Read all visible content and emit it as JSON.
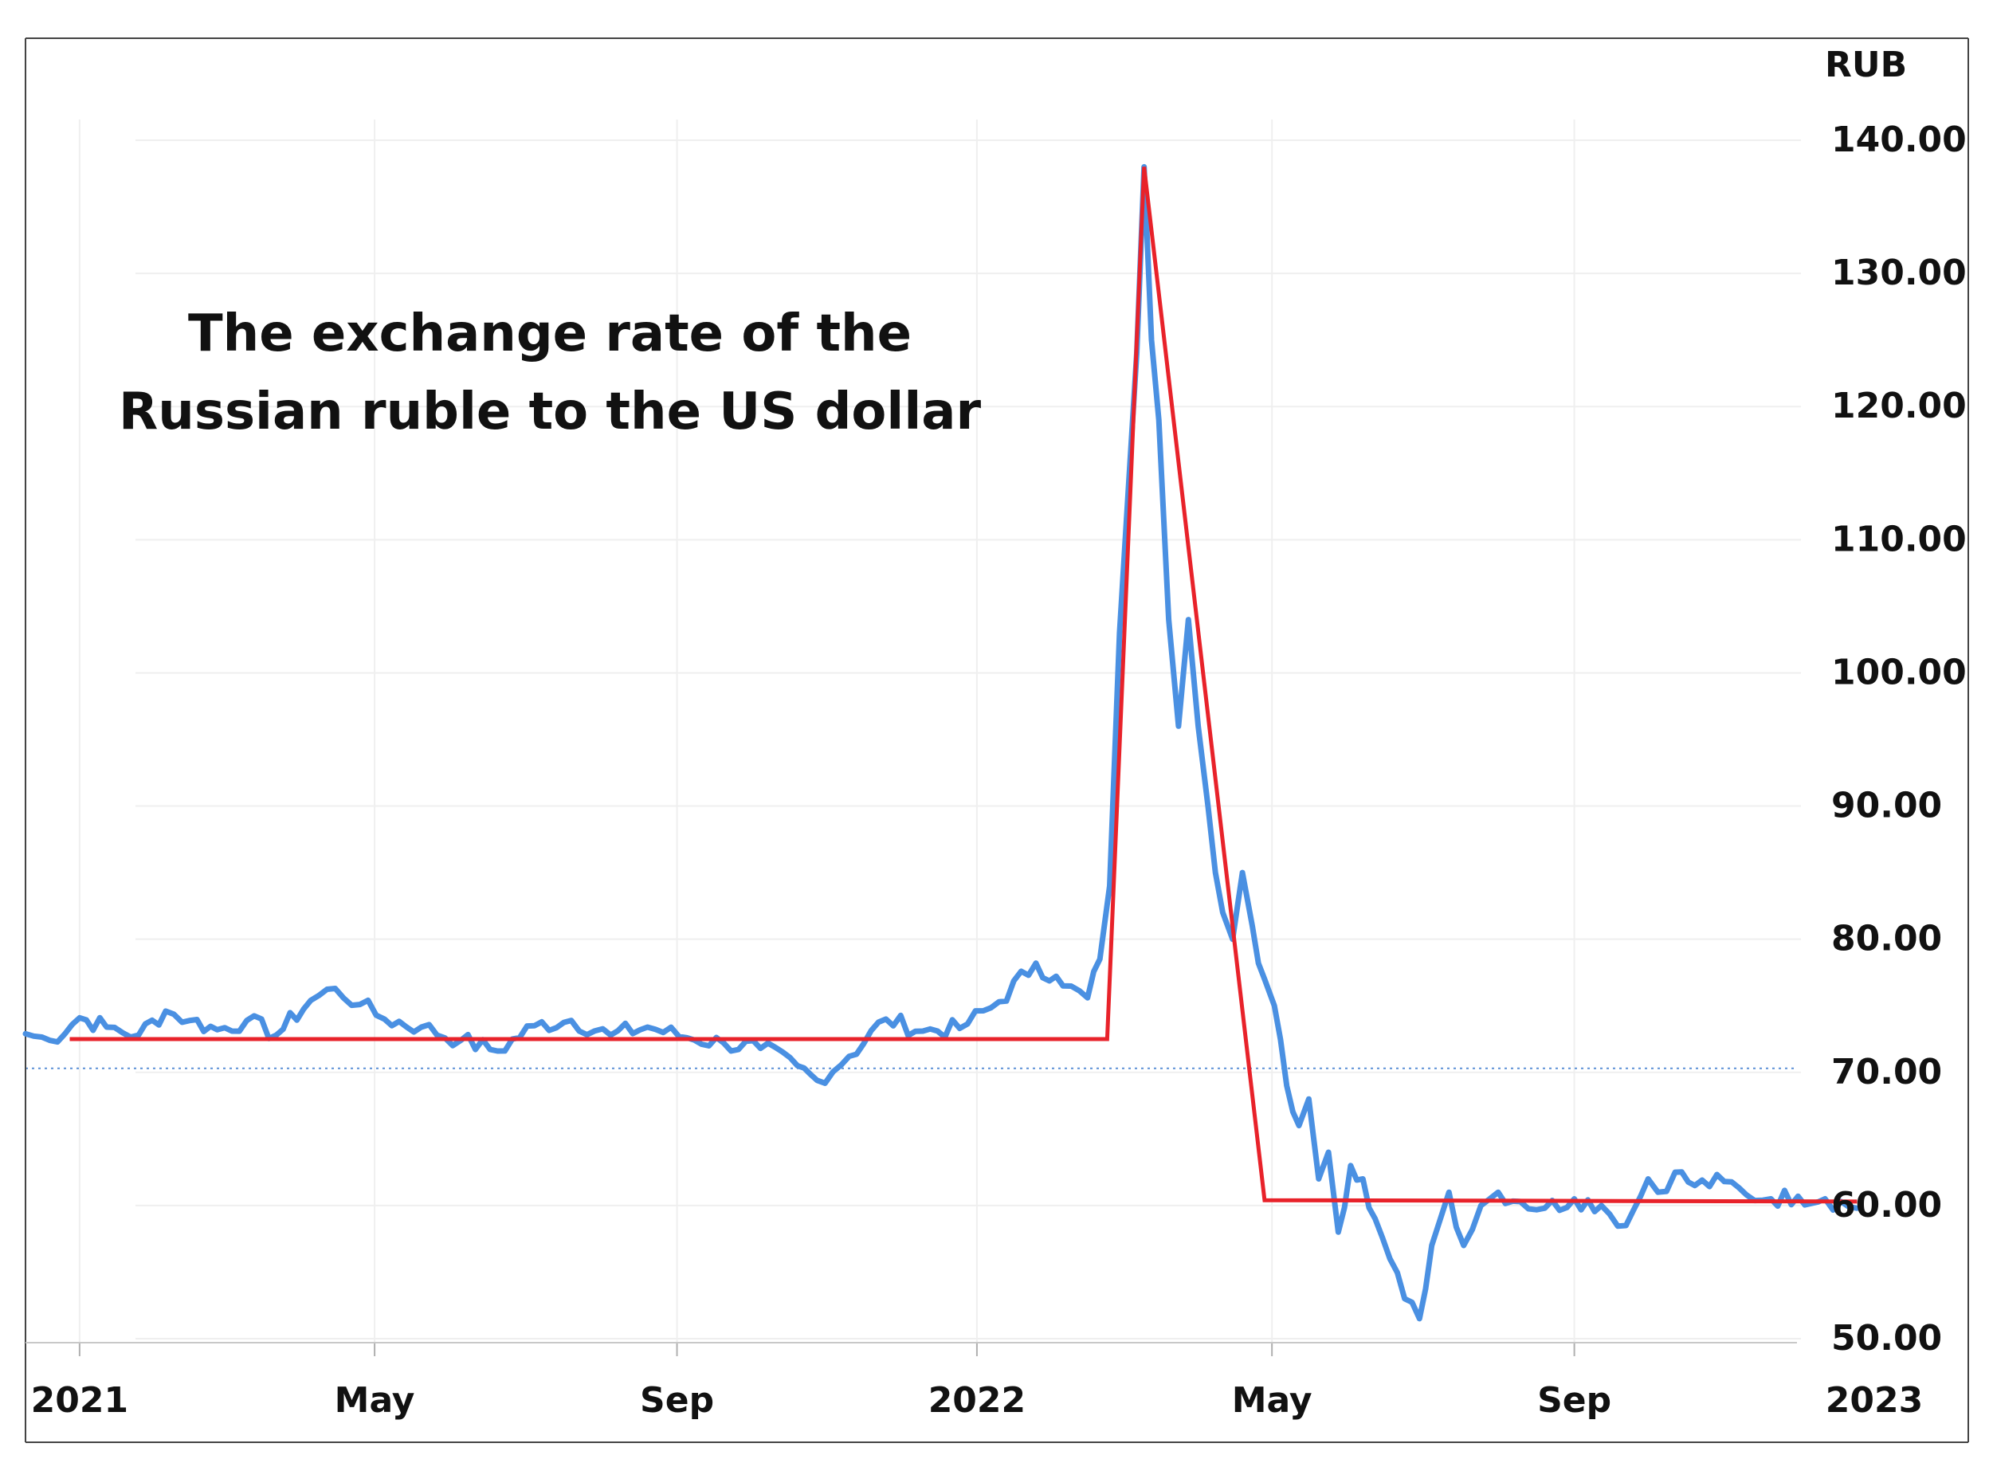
{
  "chart_data": {
    "type": "line",
    "title_lines": [
      "The exchange rate of the",
      "Russian ruble to the US dollar"
    ],
    "ylabel": "RUB",
    "ylim": [
      50,
      140
    ],
    "y_ticks": [
      50,
      60,
      70,
      80,
      90,
      100,
      110,
      120,
      130,
      140
    ],
    "y_tick_labels": [
      "50.00",
      "60.00",
      "70.00",
      "80.00",
      "90.00",
      "100.00",
      "110.00",
      "120.00",
      "130.00",
      "140.00"
    ],
    "xlim": [
      "2020-12-10",
      "2023-01-01"
    ],
    "x_ticks": [
      "2021-01-01",
      "2021-05-01",
      "2021-09-01",
      "2022-01-01",
      "2022-05-01",
      "2022-09-01",
      "2023-01-01"
    ],
    "x_tick_labels": [
      "2021",
      "May",
      "Sep",
      "2022",
      "May",
      "Sep",
      "2023"
    ],
    "grid": true,
    "reference_line": {
      "y": 70.3,
      "style": "dotted"
    },
    "series": [
      {
        "color": "#4a90e2",
        "points": [
          [
            "2020-12-10",
            72.9
          ],
          [
            "2020-12-20",
            72.4
          ],
          [
            "2021-01-01",
            74.1
          ],
          [
            "2021-01-12",
            73.4
          ],
          [
            "2021-01-25",
            72.8
          ],
          [
            "2021-02-05",
            74.6
          ],
          [
            "2021-02-15",
            73.9
          ],
          [
            "2021-02-26",
            73.2
          ],
          [
            "2021-03-10",
            73.9
          ],
          [
            "2021-03-22",
            72.8
          ],
          [
            "2021-04-05",
            75.4
          ],
          [
            "2021-04-15",
            76.3
          ],
          [
            "2021-04-25",
            75.1
          ],
          [
            "2021-05-05",
            74.0
          ],
          [
            "2021-05-20",
            73.4
          ],
          [
            "2021-06-05",
            72.4
          ],
          [
            "2021-06-20",
            71.6
          ],
          [
            "2021-07-05",
            73.5
          ],
          [
            "2021-07-20",
            73.9
          ],
          [
            "2021-08-05",
            72.8
          ],
          [
            "2021-08-20",
            73.4
          ],
          [
            "2021-09-05",
            72.6
          ],
          [
            "2021-09-20",
            72.2
          ],
          [
            "2021-10-05",
            71.8
          ],
          [
            "2021-10-20",
            70.5
          ],
          [
            "2021-10-28",
            69.4
          ],
          [
            "2021-11-10",
            71.2
          ],
          [
            "2021-11-25",
            74.0
          ],
          [
            "2021-12-10",
            73.1
          ],
          [
            "2021-12-25",
            73.3
          ],
          [
            "2022-01-10",
            75.3
          ],
          [
            "2022-01-25",
            78.2
          ],
          [
            "2022-02-05",
            76.5
          ],
          [
            "2022-02-15",
            75.6
          ],
          [
            "2022-02-20",
            78.5
          ],
          [
            "2022-02-24",
            84.0
          ],
          [
            "2022-02-28",
            103.0
          ],
          [
            "2022-03-03",
            112.0
          ],
          [
            "2022-03-07",
            124.0
          ],
          [
            "2022-03-10",
            138.0
          ],
          [
            "2022-03-13",
            125.0
          ],
          [
            "2022-03-16",
            119.0
          ],
          [
            "2022-03-20",
            104.0
          ],
          [
            "2022-03-24",
            96.0
          ],
          [
            "2022-03-28",
            104.0
          ],
          [
            "2022-04-01",
            96.0
          ],
          [
            "2022-04-05",
            90.0
          ],
          [
            "2022-04-08",
            85.0
          ],
          [
            "2022-04-11",
            82.0
          ],
          [
            "2022-04-15",
            80.0
          ],
          [
            "2022-04-19",
            85.0
          ],
          [
            "2022-04-23",
            81.0
          ],
          [
            "2022-04-28",
            77.0
          ],
          [
            "2022-05-02",
            75.0
          ],
          [
            "2022-05-07",
            69.0
          ],
          [
            "2022-05-12",
            66.0
          ],
          [
            "2022-05-16",
            68.0
          ],
          [
            "2022-05-20",
            62.0
          ],
          [
            "2022-05-24",
            64.0
          ],
          [
            "2022-05-28",
            58.0
          ],
          [
            "2022-06-02",
            63.0
          ],
          [
            "2022-06-07",
            62.0
          ],
          [
            "2022-06-12",
            59.0
          ],
          [
            "2022-06-18",
            56.0
          ],
          [
            "2022-06-24",
            53.0
          ],
          [
            "2022-06-30",
            51.5
          ],
          [
            "2022-07-05",
            57.0
          ],
          [
            "2022-07-12",
            61.0
          ],
          [
            "2022-07-18",
            57.0
          ],
          [
            "2022-07-25",
            60.0
          ],
          [
            "2022-08-01",
            61.0
          ],
          [
            "2022-08-10",
            60.3
          ],
          [
            "2022-08-20",
            59.8
          ],
          [
            "2022-09-01",
            60.5
          ],
          [
            "2022-09-12",
            60.0
          ],
          [
            "2022-09-22",
            58.5
          ],
          [
            "2022-10-01",
            62.0
          ],
          [
            "2022-10-05",
            61.0
          ],
          [
            "2022-10-12",
            62.5
          ],
          [
            "2022-10-20",
            61.5
          ],
          [
            "2022-11-01",
            61.8
          ],
          [
            "2022-11-10",
            60.8
          ],
          [
            "2022-11-20",
            60.5
          ],
          [
            "2022-12-01",
            60.7
          ],
          [
            "2022-12-12",
            60.5
          ],
          [
            "2022-12-25",
            59.8
          ]
        ]
      }
    ],
    "annotation_series": {
      "color": "#e8222a",
      "points": [
        [
          "2020-12-28",
          72.5
        ],
        [
          "2022-02-23",
          72.5
        ],
        [
          "2022-03-10",
          138.0
        ],
        [
          "2022-04-28",
          60.4
        ],
        [
          "2022-12-25",
          60.3
        ]
      ]
    }
  }
}
